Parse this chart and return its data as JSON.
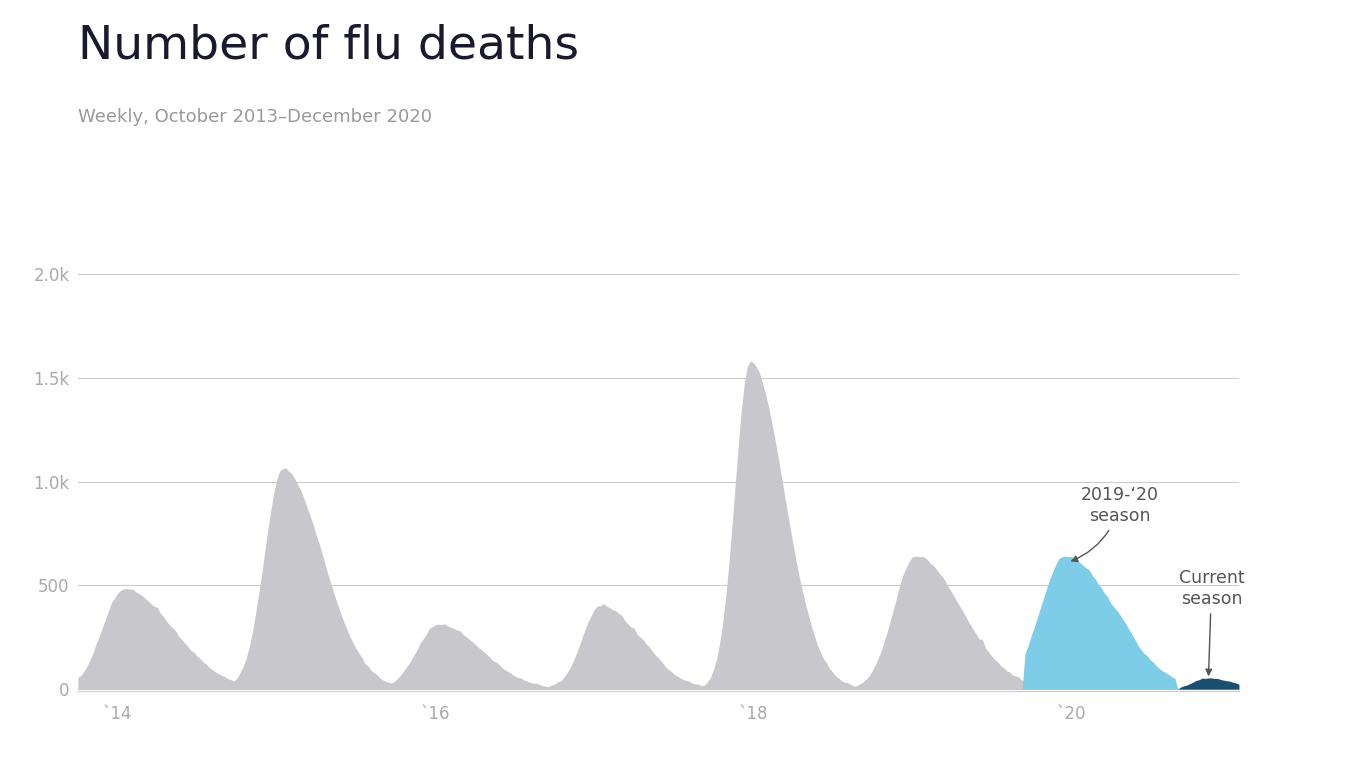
{
  "title": "Number of flu deaths",
  "subtitle": "Weekly, October 2013–December 2020",
  "background_color": "#ffffff",
  "title_color": "#1a1a2e",
  "subtitle_color": "#999999",
  "axis_color": "#cccccc",
  "tick_color": "#aaaaaa",
  "gray_fill": "#c8c8cc",
  "blue_fill": "#7ecde8",
  "dark_blue_fill": "#1b4f72",
  "ytick_labels": [
    "0",
    "500",
    "1.0k",
    "1.5k",
    "2.0k"
  ],
  "ytick_vals": [
    0,
    500,
    1000,
    1500,
    2000
  ],
  "xtick_labels": [
    "`14",
    "`16",
    "`18",
    "`20"
  ],
  "xlim": [
    0,
    380
  ],
  "ylim": [
    -10,
    2100
  ],
  "annotation_2019_text": "2019-‘20\nseason",
  "annotation_current_text": "Current\nseason",
  "ann_color": "#555555"
}
